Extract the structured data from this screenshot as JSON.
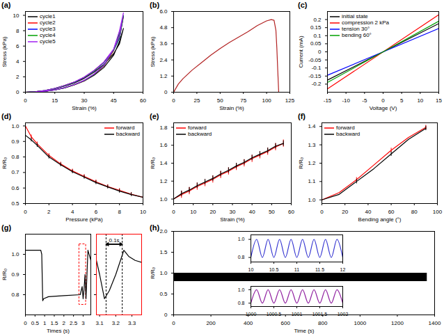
{
  "chart_data": [
    {
      "type": "line",
      "title": "(a)",
      "x_label": "Strain (%)",
      "y_label": "Stress (kPa)",
      "xlim": [
        0,
        60
      ],
      "xticks": [
        0,
        15,
        30,
        45,
        60
      ],
      "ylim": [
        0,
        10.5
      ],
      "yticks": [
        0,
        2,
        4,
        6,
        8,
        10
      ],
      "legend": "upper left",
      "series": [
        {
          "name": "cycle1",
          "color": "#000000",
          "x": [
            0,
            5,
            10,
            15,
            20,
            25,
            30,
            35,
            40,
            45,
            48,
            50,
            48,
            45,
            40,
            35,
            30,
            25,
            20,
            15,
            10,
            5,
            0
          ],
          "values": [
            0,
            0.05,
            0.2,
            0.45,
            0.8,
            1.2,
            1.8,
            2.6,
            3.6,
            5.0,
            6.3,
            8.3,
            6.6,
            4.8,
            3.2,
            2.2,
            1.45,
            0.95,
            0.55,
            0.3,
            0.12,
            0.03,
            0
          ]
        },
        {
          "name": "cycle2",
          "color": "#ff0000",
          "x": [
            0,
            5,
            10,
            15,
            20,
            25,
            30,
            35,
            40,
            45,
            48,
            50,
            48,
            45,
            40,
            35,
            30,
            25,
            20,
            15,
            10,
            5,
            0
          ],
          "values": [
            0,
            0.05,
            0.22,
            0.5,
            0.88,
            1.32,
            1.95,
            2.8,
            3.9,
            5.5,
            7.1,
            9.8,
            7.6,
            5.4,
            3.4,
            2.3,
            1.5,
            0.98,
            0.58,
            0.3,
            0.12,
            0.03,
            0
          ]
        },
        {
          "name": "cycle3",
          "color": "#0000ff",
          "x": [
            0,
            5,
            10,
            15,
            20,
            25,
            30,
            35,
            40,
            45,
            48,
            50,
            48,
            45,
            40,
            35,
            30,
            25,
            20,
            15,
            10,
            5,
            0
          ],
          "values": [
            0,
            0.05,
            0.21,
            0.48,
            0.86,
            1.3,
            1.92,
            2.76,
            3.85,
            5.45,
            7.0,
            9.9,
            7.7,
            5.5,
            3.45,
            2.32,
            1.52,
            1.0,
            0.58,
            0.3,
            0.12,
            0.03,
            0
          ]
        },
        {
          "name": "cycle4",
          "color": "#00a000",
          "x": [
            0,
            5,
            10,
            15,
            20,
            25,
            30,
            35,
            40,
            45,
            48,
            50,
            48,
            45,
            40,
            35,
            30,
            25,
            20,
            15,
            10,
            5,
            0
          ],
          "values": [
            0,
            0.05,
            0.21,
            0.49,
            0.87,
            1.31,
            1.94,
            2.78,
            3.88,
            5.5,
            7.1,
            10.0,
            7.8,
            5.5,
            3.45,
            2.32,
            1.52,
            1.0,
            0.58,
            0.3,
            0.12,
            0.03,
            0
          ]
        },
        {
          "name": "cycle5",
          "color": "#a020f0",
          "x": [
            0,
            5,
            10,
            15,
            20,
            25,
            30,
            35,
            40,
            45,
            48,
            50,
            48,
            45,
            40,
            35,
            30,
            25,
            20,
            15,
            10,
            5,
            0
          ],
          "values": [
            0,
            0.05,
            0.22,
            0.5,
            0.88,
            1.33,
            1.96,
            2.82,
            3.92,
            5.6,
            7.3,
            10.3,
            8.0,
            5.6,
            3.5,
            2.35,
            1.55,
            1.0,
            0.6,
            0.31,
            0.13,
            0.03,
            0
          ]
        }
      ]
    },
    {
      "type": "line",
      "title": "(b)",
      "x_label": "Strain (%)",
      "y_label": "Stress (kPa)",
      "xlim": [
        0,
        125
      ],
      "xticks": [
        0,
        25,
        50,
        75,
        100,
        125
      ],
      "ylim": [
        0,
        6
      ],
      "yticks": [
        0,
        1.2,
        2.4,
        3.6,
        4.8,
        {
          "value": 6,
          "label": "6.0"
        }
      ],
      "series": [
        {
          "color": "#b22222",
          "x": [
            0,
            5,
            10,
            20,
            30,
            40,
            50,
            60,
            70,
            80,
            90,
            100,
            105,
            108,
            110,
            111,
            112,
            113
          ],
          "values": [
            0,
            0.6,
            1.0,
            1.65,
            2.2,
            2.75,
            3.25,
            3.7,
            4.1,
            4.5,
            4.95,
            5.3,
            5.4,
            5.35,
            4.6,
            3.3,
            1.6,
            0
          ]
        }
      ]
    },
    {
      "type": "line",
      "title": "(c)",
      "x_label": "Voltage (V)",
      "y_label": "Current (mA)",
      "xlim": [
        -15,
        15
      ],
      "xticks": [
        -15,
        -10,
        -5,
        0,
        5,
        10,
        15
      ],
      "ylim": [
        -0.25,
        0.25
      ],
      "yticks": [
        -0.2,
        -0.15,
        -0.1,
        -0.05,
        0,
        0.05,
        0.1,
        0.15,
        0.2
      ],
      "legend": "upper left",
      "series": [
        {
          "name": "initial state",
          "color": "#000000",
          "x": [
            -15,
            15
          ],
          "values": [
            -0.175,
            0.175
          ]
        },
        {
          "name": "compression 2 kPa",
          "color": "#ff0000",
          "x": [
            -15,
            15
          ],
          "values": [
            -0.23,
            0.23
          ]
        },
        {
          "name": "tension 30°",
          "color": "#0000ff",
          "x": [
            -15,
            15
          ],
          "values": [
            -0.145,
            0.145
          ]
        },
        {
          "name": "bending 60°",
          "color": "#00a000",
          "x": [
            -15,
            15
          ],
          "values": [
            -0.19,
            0.19
          ]
        }
      ]
    },
    {
      "type": "line",
      "title": "(d)",
      "x_label": "Pressure (kPa)",
      "y_label": "R/R₀",
      "xlim": [
        0,
        10
      ],
      "xticks": [
        0,
        2,
        4,
        6,
        8,
        10
      ],
      "ylim": [
        0.5,
        1.02
      ],
      "yticks": [
        0.5,
        0.6,
        0.7,
        0.8,
        0.9,
        {
          "value": 1,
          "label": "1.0"
        }
      ],
      "legend": "upper right",
      "series": [
        {
          "name": "forward",
          "color": "#ff0000",
          "x": [
            0,
            0.5,
            1,
            2,
            3,
            4,
            5,
            6,
            7,
            8,
            9,
            10
          ],
          "values": [
            1.0,
            0.93,
            0.885,
            0.81,
            0.755,
            0.71,
            0.675,
            0.64,
            0.61,
            0.585,
            0.56,
            0.54
          ],
          "errors": [
            0.012,
            0.012,
            0.012,
            0.012,
            0.012,
            0.012,
            0.012,
            0.012,
            0.012,
            0.012,
            0.012,
            0.012
          ]
        },
        {
          "name": "backward",
          "color": "#000000",
          "x": [
            0,
            0.5,
            1,
            2,
            3,
            4,
            5,
            6,
            7,
            8,
            9,
            10
          ],
          "values": [
            0.94,
            0.91,
            0.875,
            0.8,
            0.75,
            0.705,
            0.67,
            0.635,
            0.607,
            0.58,
            0.558,
            0.54
          ],
          "errors": [
            0.012,
            0.012,
            0.012,
            0.012,
            0.012,
            0.012,
            0.012,
            0.012,
            0.012,
            0.012,
            0.012,
            0.012
          ]
        }
      ]
    },
    {
      "type": "line",
      "title": "(e)",
      "x_label": "Strain (%)",
      "y_label": "R/R₀",
      "xlim": [
        0,
        60
      ],
      "xticks": [
        0,
        10,
        20,
        30,
        40,
        50,
        60
      ],
      "ylim": [
        0.95,
        1.85
      ],
      "yticks": [
        {
          "value": 1,
          "label": "1.0"
        },
        1.2,
        1.4,
        1.6,
        1.8
      ],
      "legend": "upper left",
      "series": [
        {
          "name": "forward",
          "color": "#ff0000",
          "x": [
            0,
            4,
            8,
            12,
            16,
            20,
            24,
            28,
            32,
            36,
            40,
            44,
            48,
            52,
            56
          ],
          "values": [
            1.0,
            1.05,
            1.09,
            1.14,
            1.18,
            1.22,
            1.27,
            1.31,
            1.36,
            1.4,
            1.45,
            1.49,
            1.53,
            1.58,
            1.62
          ],
          "errors": [
            0.04,
            0.04,
            0.04,
            0.04,
            0.04,
            0.04,
            0.04,
            0.04,
            0.04,
            0.04,
            0.04,
            0.04,
            0.04,
            0.04,
            0.04
          ]
        },
        {
          "name": "backward",
          "color": "#000000",
          "x": [
            0,
            4,
            8,
            12,
            16,
            20,
            24,
            28,
            32,
            36,
            40,
            44,
            48,
            52,
            56
          ],
          "values": [
            1.0,
            1.06,
            1.1,
            1.15,
            1.19,
            1.23,
            1.28,
            1.32,
            1.37,
            1.41,
            1.46,
            1.5,
            1.54,
            1.59,
            1.62
          ],
          "errors": [
            0.03,
            0.03,
            0.03,
            0.03,
            0.03,
            0.03,
            0.03,
            0.03,
            0.03,
            0.03,
            0.03,
            0.03,
            0.03,
            0.03,
            0.03
          ]
        }
      ]
    },
    {
      "type": "line",
      "title": "(f)",
      "x_label": "Bending angle (°)",
      "y_label": "R/R₀",
      "xlim": [
        0,
        100
      ],
      "xticks": [
        0,
        20,
        40,
        60,
        80,
        100
      ],
      "ylim": [
        0.98,
        1.42
      ],
      "yticks": [
        {
          "value": 1,
          "label": "1.0"
        },
        1.1,
        1.2,
        1.3,
        1.4
      ],
      "legend": "upper left",
      "series": [
        {
          "name": "forward",
          "color": "#ff0000",
          "x": [
            0,
            15,
            30,
            45,
            60,
            75,
            90
          ],
          "values": [
            1.0,
            1.04,
            1.11,
            1.19,
            1.27,
            1.34,
            1.395
          ],
          "errors": [
            0.01,
            null,
            0.012,
            null,
            0.012,
            null,
            0.012
          ]
        },
        {
          "name": "backward",
          "color": "#000000",
          "x": [
            0,
            15,
            30,
            45,
            60,
            75,
            90
          ],
          "values": [
            1.0,
            1.03,
            1.1,
            1.17,
            1.25,
            1.33,
            1.39
          ],
          "errors": [
            0.01,
            null,
            0.012,
            null,
            0.012,
            null,
            0.012
          ]
        }
      ]
    },
    {
      "type": "line",
      "title": "(g)",
      "x_label": "Times (s)",
      "y_label": "R/R₀",
      "xlim": [
        0,
        3.4
      ],
      "xticks": [
        0,
        0.5,
        1,
        1.5,
        2,
        2.5,
        3
      ],
      "ylim": [
        0.7,
        1.1
      ],
      "yticks": [
        0.8,
        0.9,
        {
          "value": 1,
          "label": "1.0"
        }
      ],
      "highlight": {
        "x": [
          2.8,
          3.15
        ],
        "y": [
          0.75,
          1.05
        ]
      },
      "series": [
        {
          "color": "#000000",
          "x": [
            0,
            0.8,
            0.85,
            0.9,
            0.95,
            1.2,
            2.0,
            2.85,
            2.95,
            3.0,
            3.05,
            3.1,
            3.15,
            3.25,
            3.4
          ],
          "values": [
            1.02,
            1.02,
            1.0,
            0.77,
            0.78,
            0.79,
            0.795,
            0.8,
            0.84,
            0.78,
            0.83,
            0.9,
            0.78,
            1.02,
            0.97
          ]
        }
      ]
    },
    {
      "type": "line",
      "tick_labels": "x",
      "xlim": [
        3.08,
        3.36
      ],
      "xticks": [
        3.1,
        3.2,
        3.3
      ],
      "ylim": [
        0.7,
        1.1
      ],
      "yticks": [
        0.8,
        0.9,
        {
          "value": 1,
          "label": "1.0"
        }
      ],
      "annotations": [
        {
          "text": "0.1s",
          "x1": 3.14,
          "x2": 3.24,
          "y": 1.05
        }
      ],
      "series": [
        {
          "color": "#000000",
          "x": [
            3.08,
            3.1,
            3.13,
            3.16,
            3.2,
            3.25,
            3.28,
            3.32,
            3.36
          ],
          "values": [
            0.97,
            0.9,
            0.78,
            0.82,
            0.9,
            1.02,
            0.99,
            0.97,
            0.96
          ]
        }
      ]
    },
    {
      "type": "area",
      "title": "(h)",
      "x_label": "Time (s)",
      "y_label": "R/R₀",
      "xlim": [
        0,
        1400
      ],
      "xticks": [
        0,
        200,
        400,
        600,
        800,
        1000,
        1200,
        1400
      ],
      "ylim": [
        0,
        2
      ],
      "yticks": [
        0,
        0.5,
        {
          "value": 1,
          "label": "1.0"
        },
        1.5,
        {
          "value": 2,
          "label": "2.0"
        }
      ],
      "color": "#000000",
      "x": [
        0,
        1360
      ],
      "lower": [
        0.8,
        0.8
      ],
      "upper": [
        1.0,
        1.0
      ]
    },
    {
      "type": "line",
      "xlim": [
        10,
        12
      ],
      "xticks": [
        10,
        10.5,
        11,
        11.5,
        12
      ],
      "ylim": [
        0.75,
        1.05
      ],
      "yticks": [
        0.8,
        {
          "value": 1,
          "label": "1.0"
        }
      ],
      "series": [
        {
          "color": "#3030d0",
          "x": [
            10,
            10.125,
            10.25,
            10.375,
            10.5,
            10.625,
            10.75,
            10.875,
            11,
            11.125,
            11.25,
            11.375,
            11.5,
            11.625,
            11.75,
            11.875,
            12
          ],
          "values": [
            0.8,
            1.0,
            0.8,
            1.0,
            0.8,
            1.0,
            0.8,
            1.0,
            0.8,
            1.0,
            0.8,
            1.0,
            0.8,
            1.0,
            0.8,
            1.0,
            0.8
          ]
        }
      ]
    },
    {
      "type": "line",
      "xlim": [
        1000,
        1002
      ],
      "xticks": [
        1000,
        1000.5,
        1001,
        1001.5,
        1002
      ],
      "ylim": [
        0.75,
        1.05
      ],
      "yticks": [
        0.8,
        {
          "value": 1,
          "label": "1.0"
        }
      ],
      "series": [
        {
          "color": "#9020a0",
          "x": [
            1000,
            1000.125,
            1000.25,
            1000.375,
            1000.5,
            1000.625,
            1000.75,
            1000.875,
            1001,
            1001.125,
            1001.25,
            1001.375,
            1001.5,
            1001.625,
            1001.75,
            1001.875,
            1002
          ],
          "values": [
            0.8,
            1.0,
            0.8,
            1.0,
            0.8,
            1.0,
            0.8,
            1.0,
            0.8,
            1.0,
            0.8,
            1.0,
            0.8,
            1.0,
            0.8,
            1.0,
            0.8
          ]
        }
      ]
    }
  ]
}
